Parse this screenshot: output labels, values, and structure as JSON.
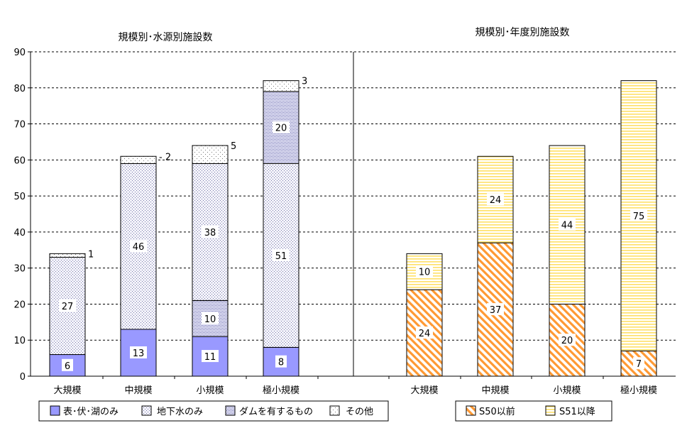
{
  "chart_data": [
    {
      "type": "bar",
      "stacked": true,
      "title": "規模別･水源別施設数",
      "categories": [
        "大規模",
        "中規模",
        "小規模",
        "極小規模"
      ],
      "series": [
        {
          "name": "表･伏･湖のみ",
          "values": [
            6,
            13,
            11,
            8
          ],
          "fill": "#9999ff"
        },
        {
          "name": "地下水のみ",
          "values": [
            27,
            46,
            38,
            51
          ],
          "fill": "#e6e6f5"
        },
        {
          "name": "ダムを有するもの",
          "values": [
            0,
            0,
            10,
            20
          ],
          "fill": "#c8c8ee"
        },
        {
          "name": "その他",
          "values": [
            1,
            2,
            5,
            3
          ],
          "fill": "#f4f4f4"
        }
      ],
      "segments": [
        [
          {
            "series": 0,
            "value": 6
          },
          {
            "series": 1,
            "value": 27
          },
          {
            "series": 3,
            "value": 1
          }
        ],
        [
          {
            "series": 0,
            "value": 13
          },
          {
            "series": 1,
            "value": 46
          },
          {
            "series": 3,
            "value": 2
          }
        ],
        [
          {
            "series": 0,
            "value": 11
          },
          {
            "series": 2,
            "value": 10
          },
          {
            "series": 1,
            "value": 38
          },
          {
            "series": 3,
            "value": 5
          }
        ],
        [
          {
            "series": 0,
            "value": 8
          },
          {
            "series": 1,
            "value": 51
          },
          {
            "series": 2,
            "value": 20
          },
          {
            "series": 3,
            "value": 3
          }
        ]
      ],
      "outside_labels": [
        "1",
        "- 2",
        "5",
        "3"
      ]
    },
    {
      "type": "bar",
      "stacked": true,
      "title": "規模別･年度別施設数",
      "categories": [
        "大規模",
        "中規模",
        "小規模",
        "極小規模"
      ],
      "series": [
        {
          "name": "S50以前",
          "values": [
            24,
            37,
            20,
            7
          ],
          "fill": "#ff9933"
        },
        {
          "name": "S51以降",
          "values": [
            10,
            24,
            44,
            75
          ],
          "fill": "#ffff99"
        }
      ]
    }
  ],
  "y_axis": {
    "min": 0,
    "max": 90,
    "ticks": [
      "0",
      "10",
      "20",
      "30",
      "40",
      "50",
      "60",
      "70",
      "80",
      "90"
    ],
    "grid": "dashed"
  },
  "colors": {
    "grid": "#000000",
    "bar_outline": "#000000",
    "label_bg": "#ffffff"
  }
}
